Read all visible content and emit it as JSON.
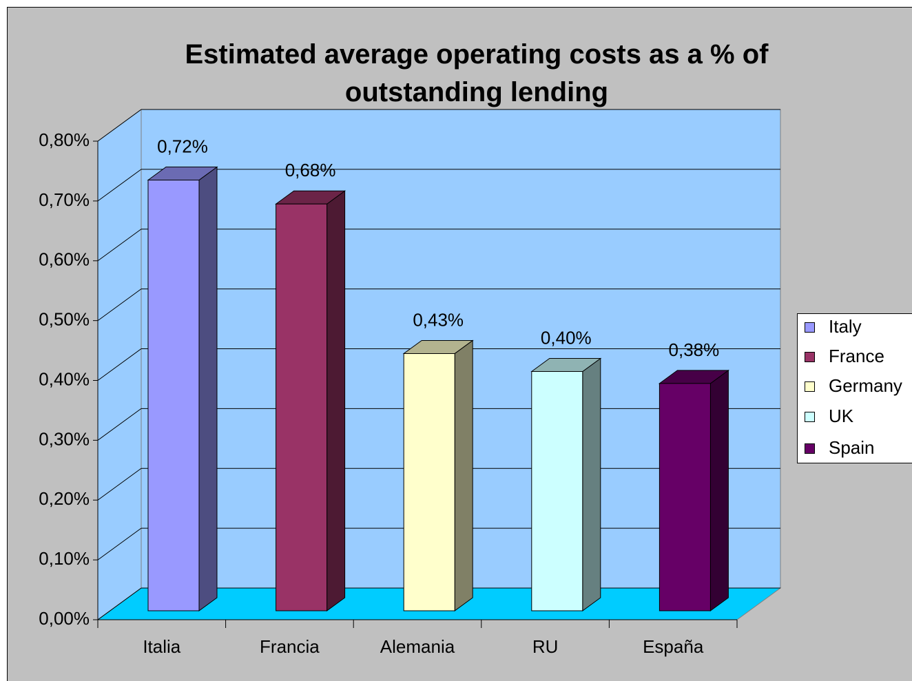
{
  "chart_data": {
    "type": "bar3d",
    "title": "Estimated average operating costs as a % of outstanding lending",
    "categories": [
      "Italia",
      "Francia",
      "Alemania",
      "RU",
      "España"
    ],
    "values": [
      0.72,
      0.68,
      0.43,
      0.4,
      0.38
    ],
    "value_labels": [
      "0,72%",
      "0,68%",
      "0,43%",
      "0,40%",
      "0,38%"
    ],
    "colors": [
      "#9999ff",
      "#993366",
      "#ffffcc",
      "#ccffff",
      "#660066"
    ],
    "ylim": [
      0,
      0.8
    ],
    "yticks": [
      {
        "value": 0,
        "label": "0,00%"
      },
      {
        "value": 0.1,
        "label": "0,10%"
      },
      {
        "value": 0.2,
        "label": "0,20%"
      },
      {
        "value": 0.3,
        "label": "0,30%"
      },
      {
        "value": 0.4,
        "label": "0,40%"
      },
      {
        "value": 0.5,
        "label": "0,50%"
      },
      {
        "value": 0.6,
        "label": "0,60%"
      },
      {
        "value": 0.7,
        "label": "0,70%"
      },
      {
        "value": 0.8,
        "label": "0,80%"
      }
    ],
    "grid": true,
    "legend": {
      "labels": [
        "Italy",
        "France",
        "Germany",
        "UK",
        "Spain"
      ],
      "position": "right"
    }
  }
}
